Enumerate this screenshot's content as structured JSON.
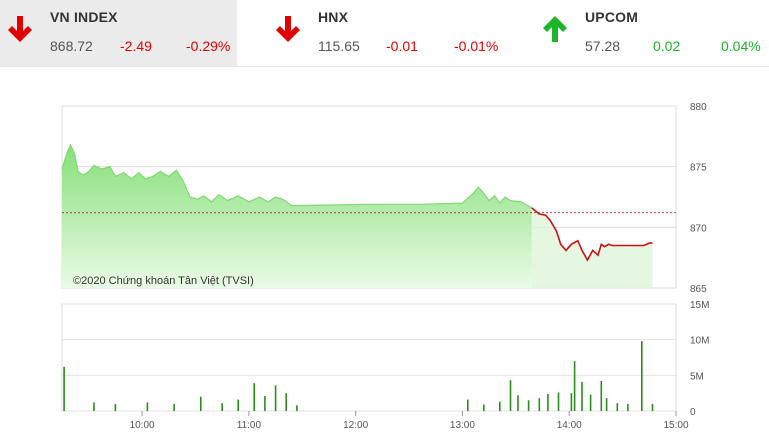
{
  "tickers": [
    {
      "name": "VN INDEX",
      "price": "868.72",
      "change": "-2.49",
      "pct": "-0.29%",
      "direction": "down"
    },
    {
      "name": "HNX",
      "price": "115.65",
      "change": "-0.01",
      "pct": "-0.01%",
      "direction": "down"
    },
    {
      "name": "UPCOM",
      "price": "57.28",
      "change": "0.02",
      "pct": "0.04%",
      "direction": "up"
    }
  ],
  "colors": {
    "down": "#e00000",
    "up": "#1fb52a",
    "area_fill": "#9be58f",
    "area_line": "#7fd873",
    "below_line": "#cc1111",
    "volume_bar": "#2e8b1f",
    "reference": "#b00000"
  },
  "copyright": "©2020 Chứng khoán Tân Việt (TVSI)",
  "chart_data": {
    "type": "area",
    "reference_value": 871.2,
    "price_axis": {
      "ylim": [
        865,
        880
      ],
      "ticks": [
        "880",
        "875",
        "870",
        "865"
      ],
      "tick_values": [
        880,
        875,
        870,
        865
      ]
    },
    "volume_axis": {
      "ylim": [
        0,
        15
      ],
      "ticks": [
        "15M",
        "10M",
        "5M",
        "0"
      ],
      "tick_values": [
        15,
        10,
        5,
        0
      ]
    },
    "x_ticks": [
      "10:00",
      "11:00",
      "12:00",
      "13:00",
      "14:00",
      "15:00"
    ],
    "x_tick_values": [
      10,
      11,
      12,
      13,
      14,
      15
    ],
    "xlim": [
      9.25,
      15.0
    ],
    "price_series": {
      "x": [
        9.25,
        9.3,
        9.33,
        9.37,
        9.4,
        9.45,
        9.5,
        9.55,
        9.62,
        9.7,
        9.75,
        9.83,
        9.9,
        9.97,
        10.03,
        10.1,
        10.17,
        10.25,
        10.32,
        10.38,
        10.45,
        10.52,
        10.58,
        10.65,
        10.72,
        10.8,
        10.9,
        11.0,
        11.1,
        11.18,
        11.25,
        11.32,
        11.4,
        11.5,
        12.1,
        12.6,
        13.0,
        13.05,
        13.1,
        13.15,
        13.2,
        13.25,
        13.3,
        13.35,
        13.4,
        13.45,
        13.55,
        13.65,
        13.72,
        13.78,
        13.82,
        13.88,
        13.92,
        13.97,
        14.02,
        14.08,
        14.12,
        14.17,
        14.22,
        14.27,
        14.3,
        14.33,
        14.37,
        14.4,
        14.43,
        14.5,
        14.6,
        14.7,
        14.75,
        14.78
      ],
      "y": [
        874.8,
        876.2,
        876.8,
        876.0,
        874.6,
        874.3,
        874.6,
        875.1,
        874.8,
        875.0,
        874.2,
        874.5,
        874.0,
        874.5,
        874.0,
        874.2,
        874.6,
        874.2,
        874.7,
        873.9,
        872.5,
        872.3,
        872.6,
        872.1,
        872.7,
        872.2,
        872.6,
        872.1,
        872.5,
        872.1,
        872.5,
        872.3,
        871.8,
        871.8,
        871.9,
        871.9,
        872.0,
        872.4,
        872.8,
        873.3,
        872.8,
        872.2,
        872.6,
        872.0,
        872.5,
        872.2,
        872.1,
        871.6,
        871.1,
        871.0,
        870.6,
        869.7,
        868.6,
        868.1,
        868.6,
        868.9,
        868.1,
        867.3,
        868.1,
        867.7,
        868.6,
        868.4,
        868.6,
        868.5,
        868.5,
        868.5,
        868.5,
        868.5,
        868.7,
        868.7
      ]
    },
    "volume_series": {
      "x": [
        9.27,
        9.55,
        9.75,
        10.05,
        10.3,
        10.55,
        10.75,
        10.9,
        11.05,
        11.15,
        11.25,
        11.35,
        11.45,
        13.05,
        13.2,
        13.35,
        13.45,
        13.52,
        13.62,
        13.72,
        13.8,
        13.9,
        14.02,
        14.05,
        14.12,
        14.2,
        14.3,
        14.35,
        14.45,
        14.55,
        14.68,
        14.78
      ],
      "y": [
        6.2,
        1.2,
        1.0,
        1.2,
        1.0,
        2.0,
        1.1,
        1.6,
        3.9,
        2.1,
        3.6,
        2.5,
        0.8,
        1.6,
        0.9,
        1.3,
        4.3,
        2.2,
        1.5,
        1.8,
        2.4,
        2.6,
        2.5,
        7.0,
        4.1,
        2.3,
        4.2,
        1.8,
        1.1,
        1.0,
        9.8,
        1.0
      ]
    }
  }
}
